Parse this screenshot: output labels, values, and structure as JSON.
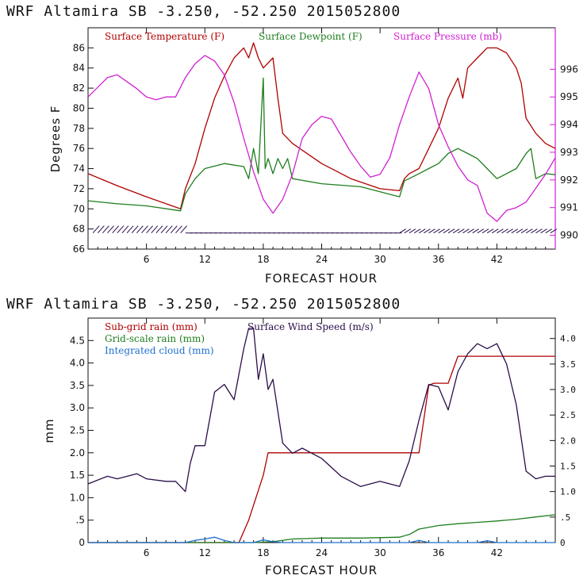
{
  "colors": {
    "temperature": "#b00000",
    "dewpoint": "#1e7d1e",
    "pressure": "#d020d0",
    "wind": "#2a0d4a",
    "subgrid": "#b00000",
    "gridscale": "#1e7d1e",
    "cloud": "#1f6fcf"
  },
  "chart_data": [
    {
      "type": "line",
      "title": "WRF   Altamira  SB  -3.250, -52.250  2015052800",
      "xlabel": "FORECAST HOUR",
      "ylabel": "Degrees F",
      "xlim": [
        0,
        48
      ],
      "ylim": [
        66,
        88
      ],
      "y2lim": [
        989.5,
        997.5
      ],
      "x_ticks": [
        6,
        12,
        18,
        24,
        30,
        36,
        42
      ],
      "y_ticks": [
        66,
        68,
        70,
        72,
        74,
        76,
        78,
        80,
        82,
        84,
        86
      ],
      "y2_ticks": [
        990,
        991,
        992,
        993,
        994,
        995,
        996
      ],
      "legend": [
        "Surface Temperature (F)",
        "Surface Dewpoint (F)",
        "Surface Pressure (mb)"
      ],
      "series": [
        {
          "name": "Surface Temperature (F)",
          "axis": "left",
          "x": [
            0,
            3,
            6,
            9.5,
            10,
            11,
            12,
            13,
            14,
            15,
            16,
            16.5,
            17,
            17.5,
            18,
            19,
            19.5,
            20,
            21,
            24,
            27,
            30,
            32,
            32.5,
            33,
            34,
            35,
            36,
            37,
            38,
            38.5,
            39,
            40,
            41,
            42,
            43,
            44,
            44.5,
            45,
            46,
            47,
            48
          ],
          "y": [
            73.5,
            72.3,
            71.2,
            70,
            72,
            74.5,
            78,
            81,
            83.2,
            85,
            86,
            85,
            86.5,
            85,
            84,
            85,
            81,
            77.5,
            76.5,
            74.5,
            73,
            72,
            71.8,
            73,
            73.5,
            74,
            76,
            78,
            81,
            83,
            81,
            84,
            85,
            86,
            86,
            85.5,
            84,
            82.5,
            79,
            77.5,
            76.5,
            76
          ]
        },
        {
          "name": "Surface Dewpoint (F)",
          "axis": "left",
          "x": [
            0,
            3,
            6,
            9.5,
            10,
            11,
            12,
            14,
            16,
            16.5,
            17,
            17.5,
            18,
            18.2,
            18.5,
            19,
            19.5,
            20,
            20.5,
            21,
            24,
            28,
            32,
            32.5,
            33,
            34,
            35,
            36,
            37,
            38,
            39,
            40,
            41,
            42,
            43,
            44,
            45,
            45.5,
            46,
            47,
            48
          ],
          "y": [
            70.8,
            70.5,
            70.3,
            69.8,
            71.5,
            73,
            74,
            74.5,
            74.2,
            73,
            76,
            73.5,
            83,
            74,
            75,
            73.5,
            75,
            74,
            75,
            73,
            72.5,
            72.2,
            71.2,
            72.8,
            73,
            73.5,
            74,
            74.5,
            75.5,
            76,
            75.5,
            75,
            74,
            73,
            73.5,
            74,
            75.5,
            76,
            73,
            73.5,
            73.4
          ]
        },
        {
          "name": "Surface Pressure (mb)",
          "axis": "right",
          "x": [
            0,
            2,
            3,
            5,
            6,
            7,
            8,
            9,
            10,
            11,
            12,
            13,
            14,
            15,
            16,
            17,
            18,
            19,
            20,
            21,
            22,
            23,
            24,
            25,
            26,
            27,
            28,
            29,
            30,
            31,
            32,
            33,
            34,
            35,
            36,
            37,
            38,
            39,
            40,
            41,
            42,
            43,
            44,
            45,
            46,
            47,
            48
          ],
          "y": [
            995,
            995.7,
            995.8,
            995.3,
            995,
            994.9,
            995,
            995,
            995.7,
            996.2,
            996.5,
            996.3,
            995.8,
            994.8,
            993.5,
            992.3,
            991.3,
            990.8,
            991.3,
            992.2,
            993.5,
            994,
            994.3,
            994.2,
            993.6,
            993,
            992.5,
            992.1,
            992.2,
            992.8,
            994,
            995,
            995.9,
            995.3,
            994,
            993.2,
            992.5,
            992,
            991.8,
            990.8,
            990.5,
            990.9,
            991,
            991.2,
            991.7,
            992.2,
            992.8
          ]
        }
      ]
    },
    {
      "type": "line",
      "title": "WRF   Altamira  SB  -3.250, -52.250  2015052800",
      "xlabel": "FORECAST HOUR",
      "ylabel": "mm",
      "xlim": [
        0,
        48
      ],
      "ylim": [
        0,
        5
      ],
      "y2lim": [
        0,
        4.4
      ],
      "x_ticks": [
        6,
        12,
        18,
        24,
        30,
        36,
        42
      ],
      "y_ticks": [
        "0",
        ".5",
        "1.0",
        "1.5",
        "2.0",
        "2.5",
        "3.0",
        "3.5",
        "4.0",
        "4.5"
      ],
      "y2_ticks": [
        "0",
        ".5",
        "1.0",
        "1.5",
        "2.0",
        "2.5",
        "3.0",
        "3.5",
        "4.0"
      ],
      "legend": [
        "Sub-grid rain (mm)",
        "Grid-scale rain (mm)",
        "Integrated cloud (mm)",
        "Surface Wind Speed (m/s)"
      ],
      "series": [
        {
          "name": "Sub-grid rain (mm)",
          "axis": "left",
          "x": [
            0,
            15.5,
            16.5,
            18,
            18.5,
            19.5,
            34,
            35,
            35.5,
            37,
            38,
            48
          ],
          "y": [
            0,
            0,
            0.5,
            1.5,
            2,
            2,
            2,
            3.5,
            3.55,
            3.55,
            4.15,
            4.15
          ]
        },
        {
          "name": "Grid-scale rain (mm)",
          "axis": "left",
          "x": [
            0,
            17,
            19,
            21,
            24,
            28,
            32,
            33,
            34,
            36,
            38,
            40,
            42,
            44,
            46,
            48
          ],
          "y": [
            0,
            0,
            0.02,
            0.08,
            0.1,
            0.1,
            0.12,
            0.18,
            0.3,
            0.38,
            0.42,
            0.45,
            0.48,
            0.52,
            0.57,
            0.62
          ]
        },
        {
          "name": "Integrated cloud (mm)",
          "axis": "left",
          "x": [
            0,
            10,
            11,
            12,
            13,
            14,
            15,
            17,
            18,
            19,
            20,
            33,
            34,
            35,
            40,
            41,
            42,
            48
          ],
          "y": [
            0,
            0,
            0.05,
            0.08,
            0.12,
            0.05,
            0,
            0,
            0.06,
            0.02,
            0,
            0,
            0.05,
            0,
            0,
            0.04,
            0,
            0
          ]
        },
        {
          "name": "Surface Wind Speed (m/s)",
          "axis": "right",
          "x": [
            0,
            2,
            3,
            5,
            6,
            8,
            9,
            10,
            10.5,
            11,
            12,
            13,
            14,
            15,
            16,
            16.5,
            17,
            17.5,
            18,
            18.5,
            19,
            20,
            21,
            22,
            24,
            26,
            28,
            30,
            32,
            33,
            34,
            35,
            36,
            37,
            38,
            39,
            40,
            41,
            42,
            43,
            44,
            45,
            46,
            47,
            48
          ],
          "y": [
            1.15,
            1.3,
            1.25,
            1.35,
            1.25,
            1.2,
            1.2,
            1.0,
            1.55,
            1.9,
            1.9,
            2.95,
            3.1,
            2.8,
            3.8,
            4.2,
            4.2,
            3.2,
            3.7,
            3.0,
            3.2,
            1.95,
            1.75,
            1.85,
            1.65,
            1.3,
            1.1,
            1.2,
            1.1,
            1.6,
            2.4,
            3.1,
            3.05,
            2.6,
            3.35,
            3.7,
            3.9,
            3.8,
            3.9,
            3.5,
            2.7,
            1.4,
            1.25,
            1.3,
            1.3
          ]
        }
      ]
    }
  ],
  "wind_barb_levels": [
    {
      "start_hour": 0.5,
      "end_hour": 10,
      "direction": "southwest"
    },
    {
      "start_hour": 10,
      "end_hour": 32,
      "direction": "east"
    },
    {
      "start_hour": 32,
      "end_hour": 48,
      "direction": "northeast"
    }
  ]
}
